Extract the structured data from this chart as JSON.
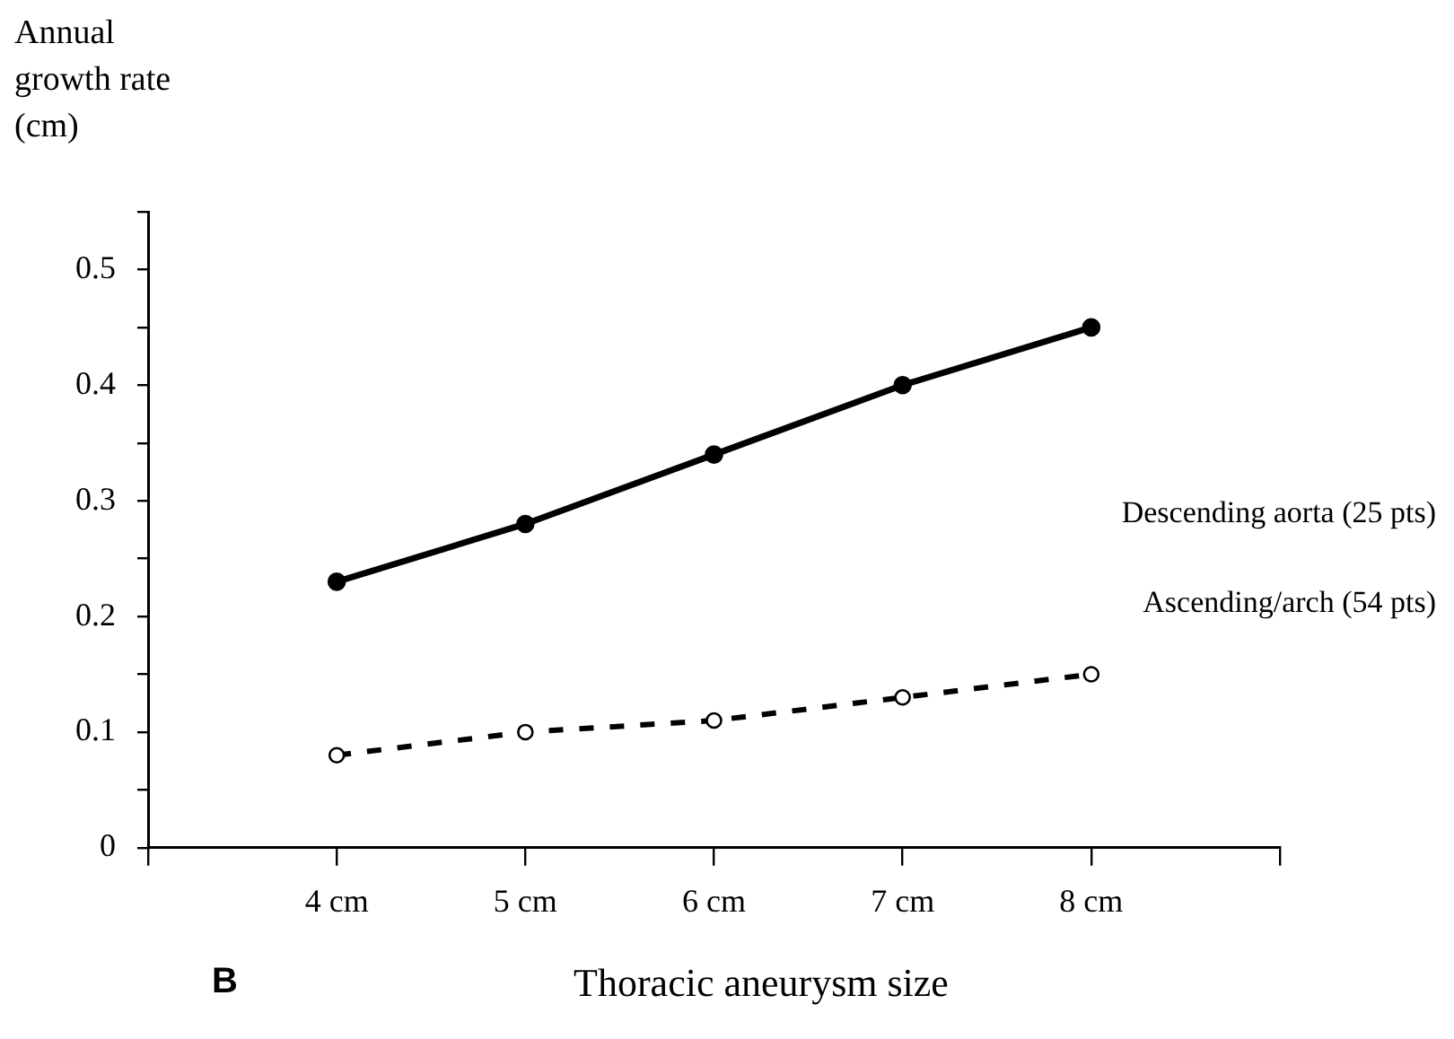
{
  "chart_data": {
    "type": "line",
    "xlabel": "Thoracic aneurysm size",
    "ylabel": "Annual growth rate (cm)",
    "x": [
      4,
      5,
      6,
      7,
      8
    ],
    "xlim": [
      3,
      9
    ],
    "xticks": [
      {
        "value": 3,
        "label": null
      },
      {
        "value": 4,
        "label": "4 cm"
      },
      {
        "value": 5,
        "label": "5 cm"
      },
      {
        "value": 6,
        "label": "6 cm"
      },
      {
        "value": 7,
        "label": "7 cm"
      },
      {
        "value": 8,
        "label": "8 cm"
      },
      {
        "value": 9,
        "label": null
      }
    ],
    "ylim": [
      0,
      0.55
    ],
    "yticks": [
      0,
      {
        "value": 0.05,
        "label": null
      },
      0.1,
      {
        "value": 0.15,
        "label": null
      },
      0.2,
      {
        "value": 0.25,
        "label": null
      },
      0.3,
      {
        "value": 0.35,
        "label": null
      },
      0.4,
      {
        "value": 0.45,
        "label": null
      },
      0.5,
      {
        "value": 0.55,
        "label": null
      }
    ],
    "grid": false,
    "legend": false,
    "marker": "circle",
    "series": [
      {
        "name": "Descending aorta (25 pts)",
        "color": "#000000",
        "line_style": "solid",
        "values": [
          0.23,
          0.28,
          0.34,
          0.4,
          0.45
        ]
      },
      {
        "name": "Ascending/arch (54 pts)",
        "color": "#000000",
        "line_style": "dashed",
        "values": [
          0.08,
          0.1,
          0.11,
          0.13,
          0.15
        ]
      }
    ],
    "annotations": [
      "B"
    ]
  }
}
